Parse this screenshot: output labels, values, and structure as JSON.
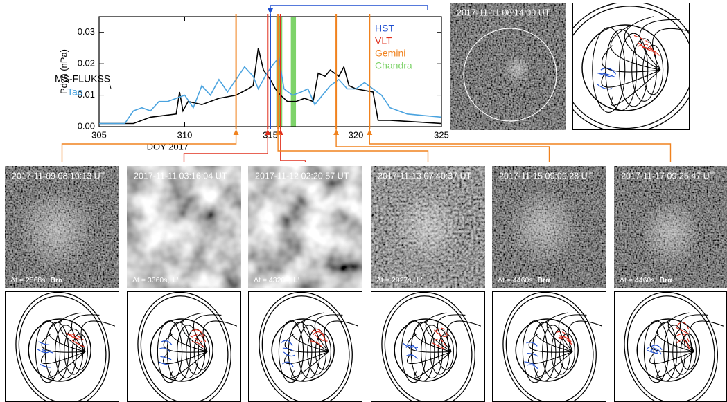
{
  "chart_data": {
    "type": "line",
    "ylabel": "Pdyn (nPa)",
    "xlabel": "DOY 2017",
    "xlim": [
      305,
      325
    ],
    "ylim": [
      0,
      0.035
    ],
    "xticks": [
      305,
      310,
      315,
      320,
      325
    ],
    "yticks": [
      {
        "value": 0,
        "label": "0.00"
      },
      0.01,
      0.02,
      0.03
    ],
    "series": [
      {
        "name": "MS-FLUKSS",
        "color": "#000000",
        "x": [
          305,
          307,
          308,
          309.5,
          309.7,
          309.9,
          310.2,
          311,
          312,
          313,
          313.7,
          314,
          314.3,
          314.6,
          315,
          315.3,
          315.6,
          316,
          316.5,
          317,
          317.5,
          317.8,
          318.2,
          318.5,
          319,
          319.3,
          319.6,
          320,
          321,
          321.3,
          322,
          325
        ],
        "values": [
          0.001,
          0.001,
          0.003,
          0.004,
          0.011,
          0.005,
          0.008,
          0.007,
          0.009,
          0.01,
          0.012,
          0.013,
          0.025,
          0.018,
          0.015,
          0.012,
          0.01,
          0.008,
          0.008,
          0.009,
          0.008,
          0.017,
          0.016,
          0.018,
          0.016,
          0.019,
          0.013,
          0.012,
          0.011,
          0.002,
          0.002,
          0.001
        ]
      },
      {
        "name": "Tao",
        "color": "#4aa3df",
        "x": [
          305,
          306.5,
          307,
          307.5,
          308,
          308.5,
          309,
          310,
          310.5,
          311,
          311.5,
          312,
          312.5,
          313,
          313.5,
          314,
          314.3,
          314.8,
          315.2,
          315.5,
          315.8,
          316.3,
          316.8,
          317.2,
          317.6,
          318.5,
          319,
          319.5,
          320,
          320.5,
          321,
          321.5,
          322,
          323,
          325
        ],
        "values": [
          0.001,
          0.001,
          0.005,
          0.006,
          0.005,
          0.008,
          0.008,
          0.01,
          0.006,
          0.013,
          0.01,
          0.015,
          0.011,
          0.015,
          0.019,
          0.016,
          0.012,
          0.017,
          0.02,
          0.022,
          0.012,
          0.01,
          0.011,
          0.012,
          0.007,
          0.013,
          0.015,
          0.012,
          0.012,
          0.014,
          0.012,
          0.01,
          0.006,
          0.004,
          0.003
        ]
      }
    ],
    "instruments": [
      {
        "name": "HST",
        "color": "#1f4fd0",
        "x": [
          315.0
        ]
      },
      {
        "name": "VLT",
        "color": "#e0301e",
        "x": [
          314.85,
          315.6
        ]
      },
      {
        "name": "Gemini",
        "color": "#f0821e",
        "x": [
          313.0,
          315.45,
          318.85,
          320.8
        ]
      },
      {
        "name": "Chandra",
        "color": "#7ed36a",
        "spans": [
          [
            315.35,
            315.7
          ],
          [
            316.2,
            316.5
          ]
        ]
      }
    ]
  },
  "top_panel": {
    "timestamp": "2017-11-11 08:14:00 UT"
  },
  "panels": [
    {
      "timestamp": "2017-11-09 08:10:13 UT",
      "exposure": "Δt = 2568s,",
      "filter": "Brα"
    },
    {
      "timestamp": "2017-11-11 03:16:04 UT",
      "exposure": "Δt = 3360s,",
      "filter": "L'"
    },
    {
      "timestamp": "2017-11-12 02:20:57 UT",
      "exposure": "Δt = 4320s,",
      "filter": "L'"
    },
    {
      "timestamp": "2017-11-13 07:40:37 UT",
      "exposure": "Δt = 2027s,",
      "filter": "L'"
    },
    {
      "timestamp": "2017-11-15 09:09:28 UT",
      "exposure": "Δt = 4460s,",
      "filter": "Brα"
    },
    {
      "timestamp": "2017-11-17 09:25:47 UT",
      "exposure": "Δt = 4460s,",
      "filter": "Brα"
    }
  ]
}
